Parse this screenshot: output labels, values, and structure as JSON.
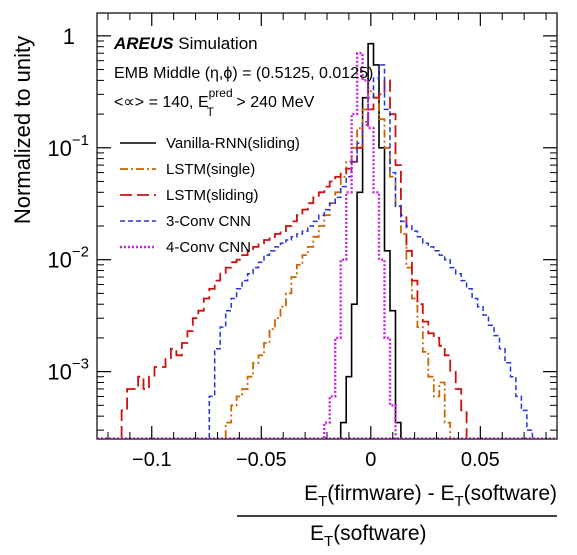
{
  "chart_data": {
    "type": "histogram",
    "title": "",
    "xlabel": {
      "top": "E_T(firmware) - E_T(software)",
      "bottom": "E_T(software)",
      "top_parts": [
        "E",
        "T",
        "(firmware) - E",
        "T",
        "(software)"
      ],
      "bottom_parts": [
        "E",
        "T",
        "(software)"
      ]
    },
    "ylabel": "Normalized to unity",
    "xlim": [
      -0.125,
      0.085
    ],
    "ylim": [
      0.00025,
      1.6
    ],
    "yscale": "log",
    "x_ticks": [
      {
        "value": -0.1,
        "label": "−0.1"
      },
      {
        "value": -0.05,
        "label": "−0.05"
      },
      {
        "value": 0,
        "label": "0"
      },
      {
        "value": 0.05,
        "label": "0.05"
      }
    ],
    "y_ticks": [
      {
        "value": 1,
        "base": "1",
        "exp": ""
      },
      {
        "value": 0.1,
        "base": "10",
        "exp": "−1"
      },
      {
        "value": 0.01,
        "base": "10",
        "exp": "−2"
      },
      {
        "value": 0.001,
        "base": "10",
        "exp": "−3"
      }
    ],
    "annotations": {
      "brand": "AREUS",
      "brand_suffix": " Simulation",
      "line2": "EMB Middle (η,ϕ) = (0.5125, 0.0125)",
      "line3_prefix": "<∝> = 140, E",
      "line3_sup": "pred",
      "line3_sub": "T",
      "line3_suffix": " > 240 MeV"
    },
    "legend_position": "top-left",
    "bin_width": 0.0025,
    "series": [
      {
        "name": "Vanilla-RNN(sliding)",
        "color": "#000000",
        "style": "solid",
        "values": [
          [
            -0.0125,
            0.00035
          ],
          [
            -0.01,
            0.0009
          ],
          [
            -0.0075,
            0.004
          ],
          [
            -0.005,
            0.04
          ],
          [
            -0.0025,
            0.28
          ],
          [
            0.0,
            0.85
          ],
          [
            0.0025,
            0.55
          ],
          [
            0.005,
            0.1
          ],
          [
            0.0075,
            0.012
          ],
          [
            0.01,
            0.0035
          ],
          [
            0.0125,
            0.00035
          ]
        ]
      },
      {
        "name": "LSTM(single)",
        "color": "#cc6600",
        "style": "dashdot",
        "values": [
          [
            -0.065,
            0.00035
          ],
          [
            -0.0625,
            0.0005
          ],
          [
            -0.06,
            0.0006
          ],
          [
            -0.0575,
            0.0007
          ],
          [
            -0.055,
            0.0009
          ],
          [
            -0.0525,
            0.0012
          ],
          [
            -0.05,
            0.0014
          ],
          [
            -0.0475,
            0.0018
          ],
          [
            -0.045,
            0.0024
          ],
          [
            -0.0425,
            0.003
          ],
          [
            -0.04,
            0.0038
          ],
          [
            -0.0375,
            0.005
          ],
          [
            -0.035,
            0.007
          ],
          [
            -0.0325,
            0.009
          ],
          [
            -0.03,
            0.011
          ],
          [
            -0.0275,
            0.013
          ],
          [
            -0.025,
            0.016
          ],
          [
            -0.0225,
            0.02
          ],
          [
            -0.02,
            0.025
          ],
          [
            -0.0175,
            0.032
          ],
          [
            -0.015,
            0.04
          ],
          [
            -0.0125,
            0.055
          ],
          [
            -0.01,
            0.075
          ],
          [
            -0.0075,
            0.1
          ],
          [
            -0.005,
            0.15
          ],
          [
            -0.0025,
            0.22
          ],
          [
            0.0,
            0.32
          ],
          [
            0.0025,
            0.28
          ],
          [
            0.005,
            0.18
          ],
          [
            0.0075,
            0.1
          ],
          [
            0.01,
            0.055
          ],
          [
            0.0125,
            0.03
          ],
          [
            0.015,
            0.017
          ],
          [
            0.0175,
            0.0085
          ],
          [
            0.02,
            0.0045
          ],
          [
            0.0225,
            0.0025
          ],
          [
            0.025,
            0.0015
          ],
          [
            0.0275,
            0.0009
          ],
          [
            0.03,
            0.0006
          ],
          [
            0.0325,
            0.0008
          ],
          [
            0.035,
            0.00035
          ]
        ]
      },
      {
        "name": "LSTM(sliding)",
        "color": "#cc1111",
        "style": "longdash",
        "values": [
          [
            -0.1125,
            0.00045
          ],
          [
            -0.11,
            0.0007
          ],
          [
            -0.1075,
            0.0007
          ],
          [
            -0.105,
            0.0009
          ],
          [
            -0.1025,
            0.0007
          ],
          [
            -0.1,
            0.0009
          ],
          [
            -0.0975,
            0.0011
          ],
          [
            -0.095,
            0.0011
          ],
          [
            -0.0925,
            0.0013
          ],
          [
            -0.09,
            0.0016
          ],
          [
            -0.0875,
            0.0014
          ],
          [
            -0.085,
            0.0018
          ],
          [
            -0.0825,
            0.0023
          ],
          [
            -0.08,
            0.003
          ],
          [
            -0.0775,
            0.0035
          ],
          [
            -0.075,
            0.0045
          ],
          [
            -0.0725,
            0.0055
          ],
          [
            -0.07,
            0.0065
          ],
          [
            -0.0675,
            0.0075
          ],
          [
            -0.065,
            0.0085
          ],
          [
            -0.0625,
            0.0095
          ],
          [
            -0.06,
            0.01
          ],
          [
            -0.0575,
            0.011
          ],
          [
            -0.055,
            0.012
          ],
          [
            -0.0525,
            0.013
          ],
          [
            -0.05,
            0.014
          ],
          [
            -0.0475,
            0.015
          ],
          [
            -0.045,
            0.016
          ],
          [
            -0.0425,
            0.017
          ],
          [
            -0.04,
            0.018
          ],
          [
            -0.0375,
            0.02
          ],
          [
            -0.035,
            0.022
          ],
          [
            -0.0325,
            0.025
          ],
          [
            -0.03,
            0.028
          ],
          [
            -0.0275,
            0.032
          ],
          [
            -0.025,
            0.036
          ],
          [
            -0.0225,
            0.04
          ],
          [
            -0.02,
            0.045
          ],
          [
            -0.0175,
            0.05
          ],
          [
            -0.015,
            0.055
          ],
          [
            -0.0125,
            0.06
          ],
          [
            -0.01,
            0.065
          ],
          [
            -0.0075,
            0.075
          ],
          [
            -0.005,
            0.1
          ],
          [
            -0.0025,
            0.16
          ],
          [
            0.0,
            0.22
          ],
          [
            0.0025,
            0.28
          ],
          [
            0.005,
            0.3
          ],
          [
            0.0075,
            0.4
          ],
          [
            0.01,
            0.2
          ],
          [
            0.0125,
            0.07
          ],
          [
            0.015,
            0.025
          ],
          [
            0.0175,
            0.012
          ],
          [
            0.02,
            0.0065
          ],
          [
            0.0225,
            0.004
          ],
          [
            0.025,
            0.0028
          ],
          [
            0.0275,
            0.0022
          ],
          [
            0.03,
            0.002
          ],
          [
            0.0325,
            0.0017
          ],
          [
            0.035,
            0.0014
          ],
          [
            0.0375,
            0.001
          ],
          [
            0.04,
            0.0007
          ],
          [
            0.0425,
            0.00045
          ]
        ]
      },
      {
        "name": "3-Conv CNN",
        "color": "#2233dd",
        "style": "dashed",
        "values": [
          [
            -0.0725,
            0.0006
          ],
          [
            -0.07,
            0.0016
          ],
          [
            -0.0675,
            0.0025
          ],
          [
            -0.065,
            0.0035
          ],
          [
            -0.0625,
            0.0045
          ],
          [
            -0.06,
            0.0055
          ],
          [
            -0.0575,
            0.0065
          ],
          [
            -0.055,
            0.0075
          ],
          [
            -0.0525,
            0.0085
          ],
          [
            -0.05,
            0.0095
          ],
          [
            -0.0475,
            0.011
          ],
          [
            -0.045,
            0.012
          ],
          [
            -0.0425,
            0.013
          ],
          [
            -0.04,
            0.014
          ],
          [
            -0.0375,
            0.015
          ],
          [
            -0.035,
            0.016
          ],
          [
            -0.0325,
            0.017
          ],
          [
            -0.03,
            0.018
          ],
          [
            -0.0275,
            0.02
          ],
          [
            -0.025,
            0.022
          ],
          [
            -0.0225,
            0.025
          ],
          [
            -0.02,
            0.028
          ],
          [
            -0.0175,
            0.032
          ],
          [
            -0.015,
            0.036
          ],
          [
            -0.0125,
            0.045
          ],
          [
            -0.01,
            0.055
          ],
          [
            -0.0075,
            0.075
          ],
          [
            -0.005,
            0.11
          ],
          [
            -0.0025,
            0.17
          ],
          [
            0.0,
            0.28
          ],
          [
            0.0025,
            0.42
          ],
          [
            0.005,
            0.55
          ],
          [
            0.0075,
            0.22
          ],
          [
            0.01,
            0.06
          ],
          [
            0.0125,
            0.03
          ],
          [
            0.015,
            0.022
          ],
          [
            0.0175,
            0.02
          ],
          [
            0.02,
            0.018
          ],
          [
            0.0225,
            0.016
          ],
          [
            0.025,
            0.014
          ],
          [
            0.0275,
            0.013
          ],
          [
            0.03,
            0.012
          ],
          [
            0.0325,
            0.011
          ],
          [
            0.035,
            0.01
          ],
          [
            0.0375,
            0.0085
          ],
          [
            0.04,
            0.0075
          ],
          [
            0.0425,
            0.0065
          ],
          [
            0.045,
            0.0055
          ],
          [
            0.0475,
            0.0045
          ],
          [
            0.05,
            0.0038
          ],
          [
            0.0525,
            0.0032
          ],
          [
            0.055,
            0.0026
          ],
          [
            0.0575,
            0.0021
          ],
          [
            0.06,
            0.0016
          ],
          [
            0.0625,
            0.0012
          ],
          [
            0.065,
            0.0009
          ],
          [
            0.0675,
            0.0006
          ],
          [
            0.07,
            0.00045
          ],
          [
            0.0725,
            0.0003
          ]
        ]
      },
      {
        "name": "4-Conv CNN",
        "color": "#cc22dd",
        "style": "dotted",
        "values": [
          [
            -0.02,
            0.00035
          ],
          [
            -0.0175,
            0.0006
          ],
          [
            -0.015,
            0.002
          ],
          [
            -0.0125,
            0.01
          ],
          [
            -0.01,
            0.04
          ],
          [
            -0.0075,
            0.2
          ],
          [
            -0.005,
            0.7
          ],
          [
            -0.0025,
            0.4
          ],
          [
            0.0,
            0.15
          ],
          [
            0.0025,
            0.04
          ],
          [
            0.005,
            0.01
          ],
          [
            0.0075,
            0.002
          ],
          [
            0.01,
            0.0005
          ]
        ]
      }
    ]
  }
}
